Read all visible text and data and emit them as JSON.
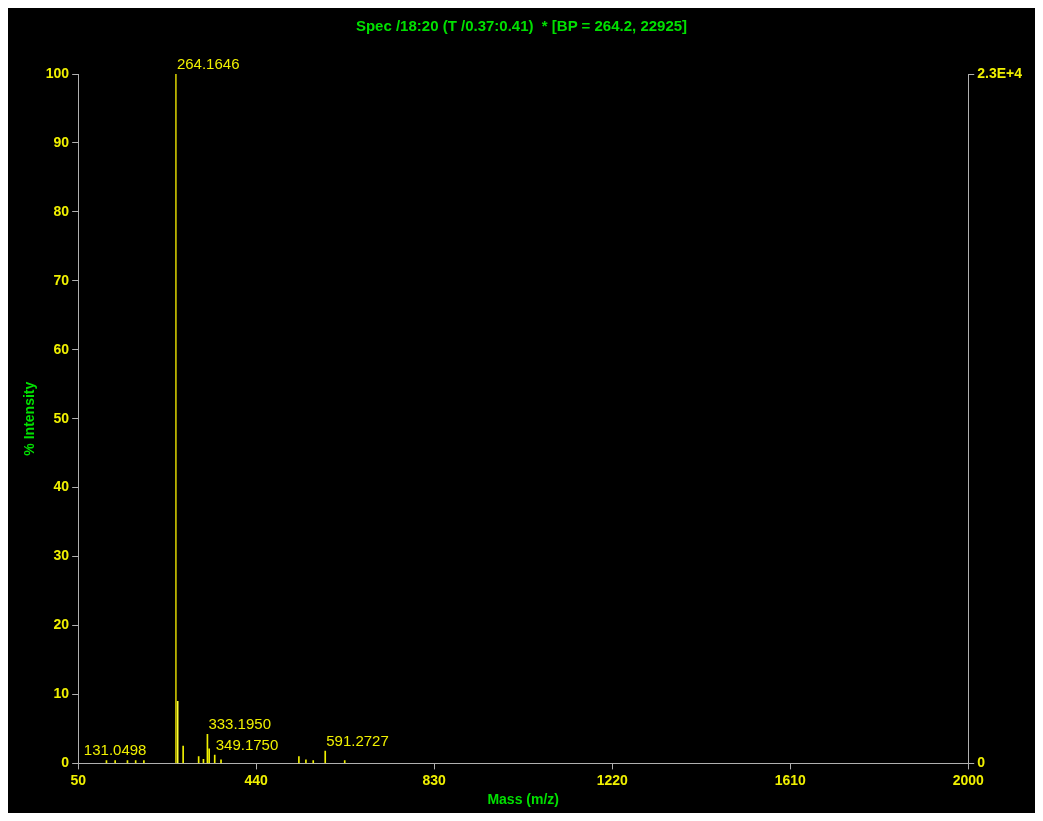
{
  "chart_data": {
    "type": "bar",
    "title": "Spec /18:20 (T /0.37:0.41)  * [BP = 264.2, 22925]",
    "xlabel": "Mass (m/z)",
    "ylabel": "% Intensity",
    "x": [
      112,
      131.0498,
      158,
      176,
      194,
      264.1646,
      268,
      280,
      314,
      324.5,
      333.195,
      337,
      349.175,
      363,
      533.6,
      549,
      565,
      591.2727,
      634
    ],
    "series": [
      {
        "colors": [
          "#f0f000",
          "#f0f000",
          "#f0f000",
          "#f0f000",
          "#f0f000",
          "#c8c000",
          "#ffff30",
          "#f0f000",
          "#f0f000",
          "#f0f000",
          "#f0f000",
          "#f0f000",
          "#f0f000",
          "#f0f000",
          "#f0f000",
          "#f0f000",
          "#f0f000",
          "#f0f000",
          "#f0f000"
        ],
        "values": [
          0.4,
          0.4,
          0.4,
          0.4,
          0.4,
          100,
          9.0,
          2.5,
          1.0,
          0.6,
          4.2,
          2.1,
          1.2,
          0.5,
          1.0,
          0.5,
          0.4,
          1.8,
          0.4
        ]
      }
    ],
    "xlim": [
      50,
      2000
    ],
    "xticks": [
      50,
      440,
      830,
      1220,
      1610,
      2000
    ],
    "ylim": [
      0,
      100
    ],
    "yticks": [
      0,
      10,
      20,
      30,
      40,
      50,
      60,
      70,
      80,
      90,
      100
    ],
    "y2lim": [
      0,
      23000
    ],
    "y2ticks": [
      0,
      {
        "value": 23000,
        "label": "2.3E+4"
      }
    ],
    "annotations": [
      {
        "text": "264.1646",
        "x": 264.1646,
        "y": 100
      },
      {
        "text": "131.0498",
        "x": 131.0498,
        "y": 0.4
      },
      {
        "text": "333.1950",
        "x": 333.195,
        "y": 4.2
      },
      {
        "text": "349.1750",
        "x": 349.175,
        "y": 1.2
      },
      {
        "text": "591.2727",
        "x": 591.2727,
        "y": 1.8
      }
    ],
    "grid": false,
    "legend": false
  }
}
